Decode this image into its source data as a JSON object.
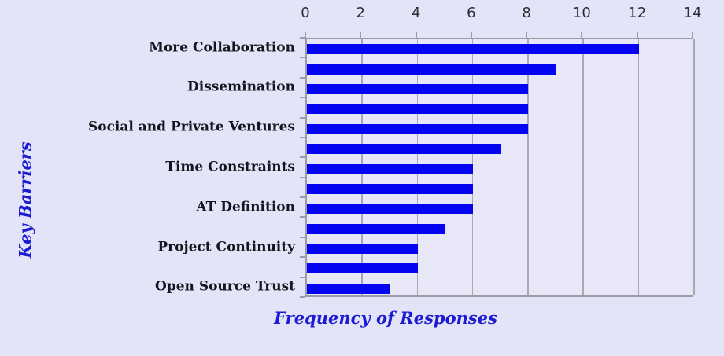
{
  "chart_data": {
    "type": "bar",
    "orientation": "horizontal",
    "title": "",
    "xlabel": "Frequency of Responses",
    "ylabel": "Key Barriers",
    "categories": [
      "More Collaboration",
      "",
      "Dissemination",
      "",
      "Social and Private Ventures",
      "",
      "Time Constraints",
      "",
      "AT Definition",
      "",
      "Project Continuity",
      "",
      "Open Source Trust"
    ],
    "values": [
      12,
      9,
      8,
      8,
      8,
      7,
      6,
      6,
      6,
      5,
      4,
      4,
      3
    ],
    "xlim": [
      0,
      14
    ],
    "xticks": [
      0,
      2,
      4,
      6,
      8,
      10,
      12,
      14
    ],
    "grid": true,
    "legend": "none",
    "bar_color": "#0404f0",
    "background_color": "#e4e4f9",
    "gridline_color": "#a8a8b2",
    "axis_color": "#9c9ca6",
    "tick_label_color": "#2b2b31",
    "category_label_color": "#15151d",
    "axis_title_color": "#1b1bd1"
  }
}
